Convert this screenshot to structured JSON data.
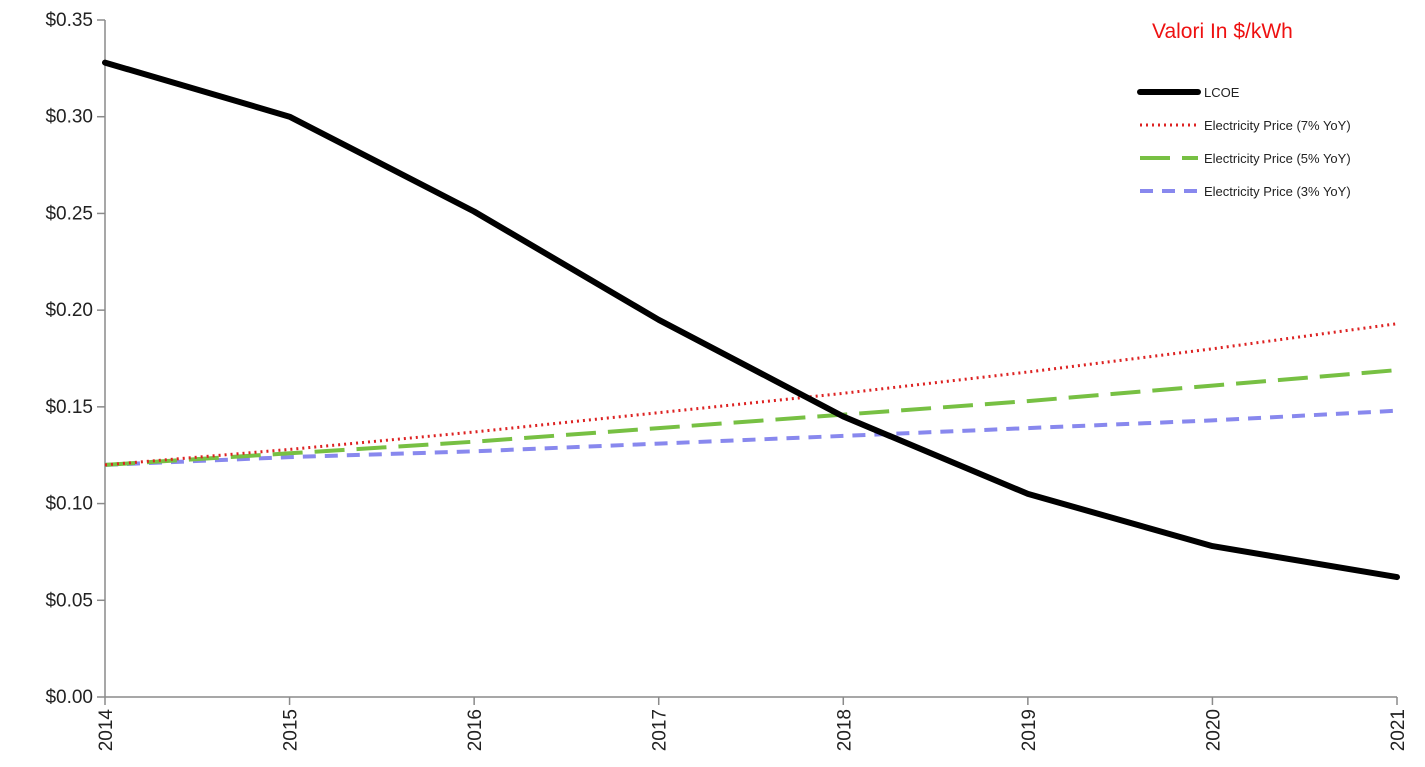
{
  "annotation": "Valori In $/kWh",
  "chart_data": {
    "type": "line",
    "x": [
      2014,
      2015,
      2016,
      2017,
      2018,
      2019,
      2020,
      2021
    ],
    "xlim": [
      2014,
      2021
    ],
    "ylim": [
      0,
      0.35
    ],
    "y_ticks": [
      0.0,
      0.05,
      0.1,
      0.15,
      0.2,
      0.25,
      0.3,
      0.35
    ],
    "y_tick_labels": [
      "$0.00",
      "$0.05",
      "$0.10",
      "$0.15",
      "$0.20",
      "$0.25",
      "$0.30",
      "$0.35"
    ],
    "x_tick_labels": [
      "2014",
      "2015",
      "2016",
      "2017",
      "2018",
      "2019",
      "2020",
      "2021"
    ],
    "grid": false,
    "legend_position": "top-right",
    "series": [
      {
        "name": "LCOE",
        "values": [
          0.328,
          0.3,
          0.251,
          0.195,
          0.145,
          0.105,
          0.078,
          0.062
        ],
        "color": "#000000",
        "style": "solid"
      },
      {
        "name": "Electricity Price (7% YoY)",
        "values": [
          0.12,
          0.128,
          0.137,
          0.147,
          0.157,
          0.168,
          0.18,
          0.193
        ],
        "color": "#dd2222",
        "style": "dotted"
      },
      {
        "name": "Electricity Price (5% YoY)",
        "values": [
          0.12,
          0.126,
          0.132,
          0.139,
          0.146,
          0.153,
          0.161,
          0.169
        ],
        "color": "#77c043",
        "style": "long-dash"
      },
      {
        "name": "Electricity Price (3% YoY)",
        "values": [
          0.12,
          0.124,
          0.127,
          0.131,
          0.135,
          0.139,
          0.143,
          0.148
        ],
        "color": "#8888ee",
        "style": "dash"
      }
    ]
  }
}
